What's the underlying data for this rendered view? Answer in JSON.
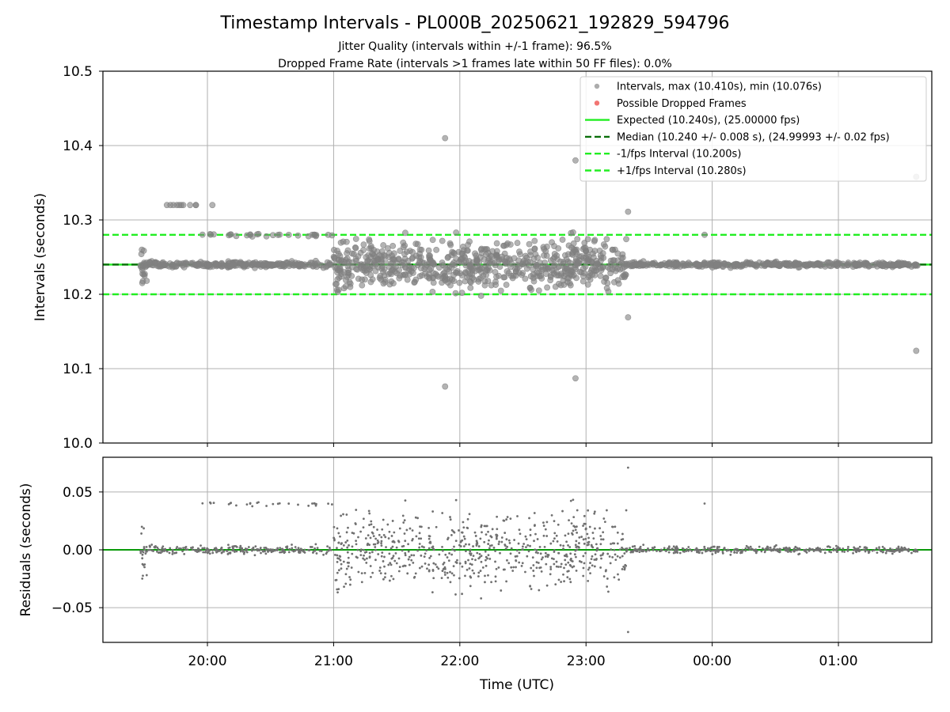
{
  "title": "Timestamp Intervals - PL000B_20250621_192829_594796",
  "subtitle_1": "Jitter Quality (intervals within +/-1 frame): 96.5%",
  "subtitle_2": "Dropped Frame Rate (intervals >1 frames late within 50 FF files): 0.0%",
  "colors": {
    "points": "#808080",
    "residual_points": "#707070",
    "dropped": "#ef5350",
    "expected": "#22ee22",
    "median": "#0a6e0a",
    "fps_interval": "#22ee22",
    "grid": "#b0b0b0"
  },
  "chart_data": [
    {
      "type": "scatter",
      "panel": "intervals",
      "ylabel": "Intervals (seconds)",
      "ylim": [
        10.0,
        10.5
      ],
      "yticks": [
        "10.0",
        "10.1",
        "10.2",
        "10.3",
        "10.4",
        "10.5"
      ],
      "grid": true,
      "legend_position": "top-right",
      "legend": [
        {
          "kind": "point",
          "label": "Intervals, max (10.410s), min (10.076s)"
        },
        {
          "kind": "point-red",
          "label": "Possible Dropped Frames"
        },
        {
          "kind": "line-solid",
          "label": "Expected (10.240s), (25.00000 fps)"
        },
        {
          "kind": "line-median",
          "label": "Median (10.240 +/- 0.008 s), (24.99993 +/- 0.02 fps)"
        },
        {
          "kind": "line-dash",
          "label": "-1/fps Interval (10.200s)"
        },
        {
          "kind": "line-dash",
          "label": "+1/fps Interval (10.280s)"
        }
      ],
      "reference_lines": {
        "expected": 10.24,
        "median": 10.24,
        "minus_1_fps": 10.2,
        "plus_1_fps": 10.28
      },
      "series_summary": {
        "max": 10.41,
        "min": 10.076,
        "time_start": "19:28",
        "time_end": "01:38",
        "notable_points": [
          {
            "t": "21:53",
            "y": 10.41
          },
          {
            "t": "21:53",
            "y": 10.076
          },
          {
            "t": "22:55",
            "y": 10.38
          },
          {
            "t": "22:55",
            "y": 10.087
          },
          {
            "t": "23:20",
            "y": 10.311
          },
          {
            "t": "23:20",
            "y": 10.169
          },
          {
            "t": "01:37",
            "y": 10.358
          },
          {
            "t": "01:37",
            "y": 10.124
          }
        ]
      }
    },
    {
      "type": "scatter",
      "panel": "residuals",
      "ylabel": "Residuals (seconds)",
      "xlabel": "Time (UTC)",
      "ylim": [
        -0.08,
        0.08
      ],
      "yticks": [
        "−0.05",
        "0.00",
        "0.05"
      ],
      "xticks": [
        "20:00",
        "21:00",
        "22:00",
        "23:00",
        "00:00",
        "01:00"
      ],
      "grid": true,
      "reference_lines": {
        "zero": 0.0
      }
    }
  ]
}
